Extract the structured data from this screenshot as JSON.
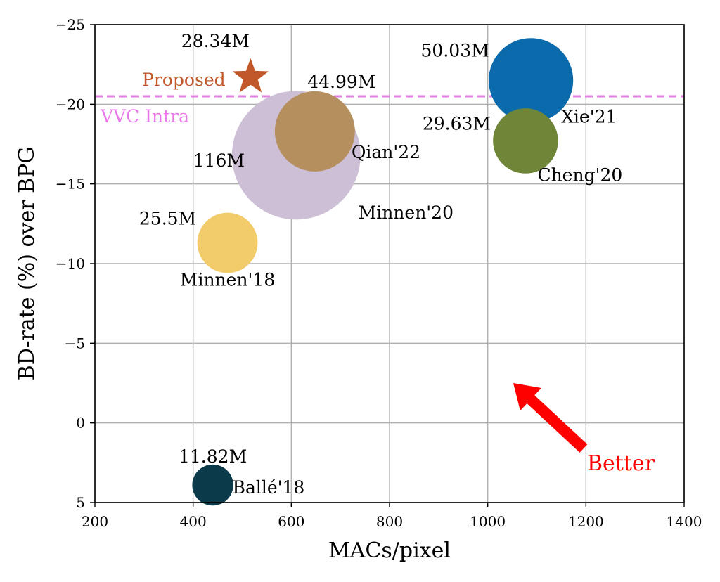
{
  "chart_data": {
    "type": "scatter",
    "xlabel": "MACs/pixel",
    "ylabel": "BD-rate (%) over BPG",
    "xlim": [
      200,
      1400
    ],
    "ylim": [
      5,
      -25
    ],
    "y_axis_inverted": true,
    "grid": true,
    "x_ticks": [
      "200",
      "400",
      "600",
      "800",
      "1000",
      "1200",
      "1400"
    ],
    "y_ticks": [
      "5",
      "0",
      "−5",
      "−10",
      "−15",
      "−20",
      "−25"
    ],
    "points": [
      {
        "name": "Ballé'18",
        "x": 440,
        "y": 3.9,
        "params": "11.82M",
        "params_m": 11.82,
        "color": "#0b3a4a",
        "marker": "circle"
      },
      {
        "name": "Minnen'18",
        "x": 470,
        "y": -11.3,
        "params": "25.5M",
        "params_m": 25.5,
        "color": "#f2cc6b",
        "marker": "circle"
      },
      {
        "name": "Minnen'20",
        "x": 610,
        "y": -16.8,
        "params": "116M",
        "params_m": 116,
        "color": "#cdbfd5",
        "marker": "circle"
      },
      {
        "name": "Qian'22",
        "x": 648,
        "y": -18.3,
        "params": "44.99M",
        "params_m": 44.99,
        "color": "#b58f5d",
        "marker": "circle"
      },
      {
        "name": "Cheng'20",
        "x": 1077,
        "y": -17.7,
        "params": "29.63M",
        "params_m": 29.63,
        "color": "#6f8638",
        "marker": "circle"
      },
      {
        "name": "Xie'21",
        "x": 1088,
        "y": -21.5,
        "params": "50.03M",
        "params_m": 50.03,
        "color": "#0a6aab",
        "marker": "circle"
      },
      {
        "name": "Proposed",
        "x": 517,
        "y": -21.7,
        "params": "28.34M",
        "params_m": 28.34,
        "color": "#c1582a",
        "marker": "star"
      }
    ],
    "reference_line": {
      "name": "VVC Intra",
      "y": -20.5,
      "color": "#e87ae8",
      "style": "dashed"
    },
    "annotation": {
      "text": "Better",
      "color": "#ff0000",
      "arrow": "up-left"
    }
  }
}
